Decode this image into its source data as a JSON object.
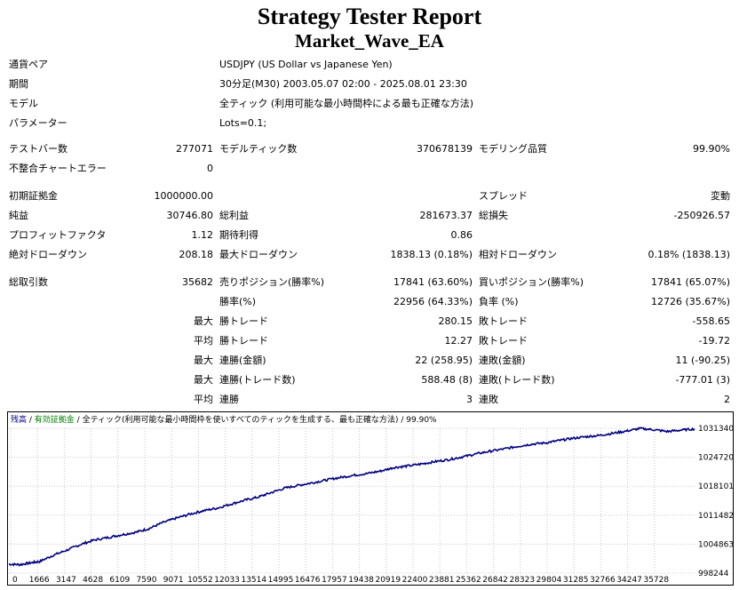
{
  "title": "Strategy Tester Report",
  "ea_name": "Market_Wave_EA",
  "info": {
    "symbol_label": "通貨ペア",
    "symbol_value": "USDJPY (US Dollar vs Japanese Yen)",
    "period_label": "期間",
    "period_value": "30分足(M30) 2003.05.07 02:00 - 2025.08.01 23:30",
    "model_label": "モデル",
    "model_value": "全ティック (利用可能な最小時間枠による最も正確な方法)",
    "params_label": "パラメーター",
    "params_value": "Lots=0.1;"
  },
  "stats": {
    "bars_label": "テストバー数",
    "bars_value": "277071",
    "ticks_label": "モデルティック数",
    "ticks_value": "370678139",
    "quality_label": "モデリング品質",
    "quality_value": "99.90%",
    "mismatch_label": "不整合チャートエラー",
    "mismatch_value": "0",
    "deposit_label": "初期証拠金",
    "deposit_value": "1000000.00",
    "spread_label": "スプレッド",
    "spread_value": "変動",
    "netprofit_label": "純益",
    "netprofit_value": "30746.80",
    "grossprofit_label": "総利益",
    "grossprofit_value": "281673.37",
    "grossloss_label": "総損失",
    "grossloss_value": "-250926.57",
    "pf_label": "プロフィットファクタ",
    "pf_value": "1.12",
    "expected_label": "期待利得",
    "expected_value": "0.86",
    "absdd_label": "絶対ドローダウン",
    "absdd_value": "208.18",
    "maxdd_label": "最大ドローダウン",
    "maxdd_value": "1838.13 (0.18%)",
    "reldd_label": "相対ドローダウン",
    "reldd_value": "0.18% (1838.13)",
    "trades_label": "総取引数",
    "trades_value": "35682",
    "short_label": "売りポジション(勝率%)",
    "short_value": "17841 (63.60%)",
    "long_label": "買いポジション(勝率%)",
    "long_value": "17841 (65.07%)",
    "winrate_label": "勝率(%)",
    "winrate_value": "22956 (64.33%)",
    "lossrate_label": "負率 (%)",
    "lossrate_value": "12726 (35.67%)"
  },
  "extended": {
    "max_label": "最大",
    "avg_label": "平均",
    "largest_profit_label": "勝トレード",
    "largest_profit_value": "280.15",
    "largest_loss_label": "敗トレード",
    "largest_loss_value": "-558.65",
    "avg_profit_label": "勝トレード",
    "avg_profit_value": "12.27",
    "avg_loss_label": "敗トレード",
    "avg_loss_value": "-19.72",
    "max_consec_wins_money_label": "連勝(金額)",
    "max_consec_wins_money_value": "22 (258.95)",
    "max_consec_losses_money_label": "連敗(金額)",
    "max_consec_losses_money_value": "11 (-90.25)",
    "max_consec_profit_label": "連勝(トレード数)",
    "max_consec_profit_value": "588.48 (8)",
    "max_consec_loss_label": "連敗(トレード数)",
    "max_consec_loss_value": "-777.01 (3)",
    "avg_consec_wins_label": "連勝",
    "avg_consec_wins_value": "3",
    "avg_consec_losses_label": "連敗",
    "avg_consec_losses_value": "2"
  },
  "chart_data": {
    "type": "line",
    "legend_balance": "残高",
    "legend_sep": " / ",
    "legend_equity": "有効証拠金",
    "legend_model": "全ティック(利用可能な最小時間枠を使いすべてのティックを生成する、最も正確な方法)",
    "legend_quality": "99.90%",
    "colors": {
      "balance": "#000080",
      "equity": "#008000",
      "grid": "#c8c8c8"
    },
    "y_ticks": [
      "1031340",
      "1024720",
      "1018101",
      "1011482",
      "1004863",
      "998244"
    ],
    "x_ticks": [
      "0",
      "1666",
      "3147",
      "4628",
      "6109",
      "7590",
      "9071",
      "10552",
      "12033",
      "13514",
      "14995",
      "16476",
      "17957",
      "19438",
      "20919",
      "22400",
      "23881",
      "25362",
      "26842",
      "28323",
      "29804",
      "31285",
      "32766",
      "34247",
      "35728"
    ],
    "ylim": [
      998244,
      1031340
    ],
    "xlim": [
      0,
      37200
    ],
    "x": [
      0,
      600,
      1200,
      1666,
      2400,
      3147,
      3900,
      4628,
      5400,
      6109,
      6900,
      7590,
      8300,
      9071,
      9800,
      10552,
      11300,
      12033,
      12800,
      13514,
      14200,
      14995,
      15700,
      16476,
      17200,
      17957,
      18700,
      19438,
      20200,
      20919,
      21600,
      22400,
      23100,
      23881,
      24600,
      25362,
      26100,
      26842,
      27600,
      28323,
      29100,
      29804,
      30500,
      31285,
      32000,
      32766,
      33500,
      34247,
      35000,
      35728,
      36400,
      37200
    ],
    "y": [
      1000300,
      1000200,
      1000600,
      1000900,
      1002300,
      1003500,
      1004800,
      1005800,
      1006400,
      1007000,
      1007600,
      1008400,
      1009700,
      1010800,
      1011700,
      1012500,
      1013100,
      1014000,
      1014900,
      1015600,
      1016600,
      1017700,
      1018300,
      1018900,
      1019500,
      1020100,
      1020600,
      1021000,
      1021600,
      1022400,
      1022700,
      1023200,
      1023700,
      1024200,
      1024800,
      1025500,
      1026100,
      1026600,
      1027200,
      1027700,
      1028000,
      1028500,
      1029000,
      1029400,
      1029700,
      1030200,
      1030700,
      1031300,
      1031000,
      1030600,
      1030900,
      1031200
    ]
  }
}
